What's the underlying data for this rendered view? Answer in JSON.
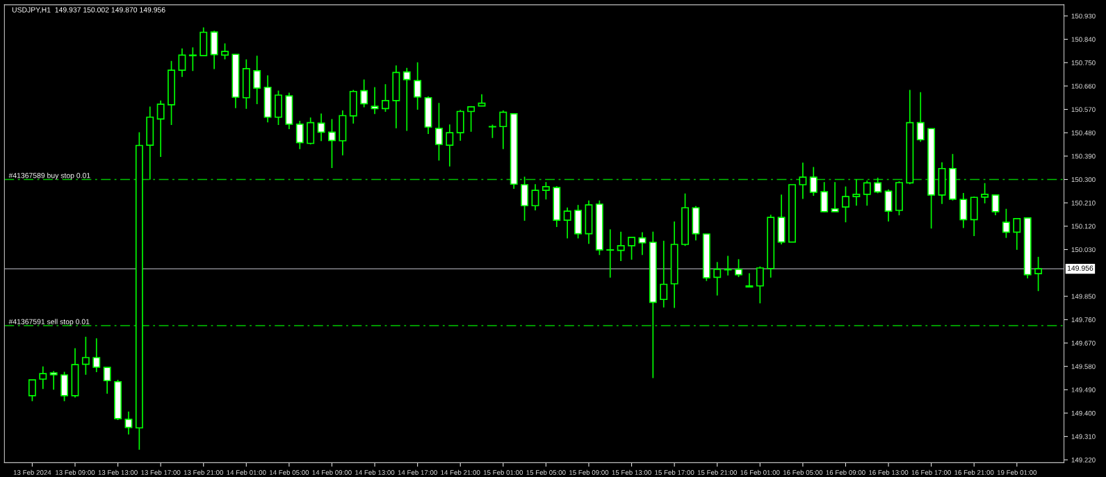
{
  "chart_data": {
    "type": "candlestick",
    "title": "USDJPY,H1  149.937 150.002 149.870 149.956",
    "color": "#00ff00",
    "categories": [
      "13 Feb 2024",
      null,
      null,
      null,
      "13 Feb 09:00",
      null,
      null,
      null,
      "13 Feb 13:00",
      null,
      null,
      null,
      "13 Feb 17:00",
      null,
      null,
      null,
      "13 Feb 21:00",
      null,
      null,
      null,
      "14 Feb 01:00",
      null,
      null,
      null,
      "14 Feb 05:00",
      null,
      null,
      null,
      "14 Feb 09:00",
      null,
      null,
      null,
      "14 Feb 13:00",
      null,
      null,
      null,
      "14 Feb 17:00",
      null,
      null,
      null,
      "14 Feb 21:00",
      null,
      null,
      null,
      "15 Feb 01:00",
      null,
      null,
      null,
      "15 Feb 05:00",
      null,
      null,
      null,
      "15 Feb 09:00",
      null,
      null,
      null,
      "15 Feb 13:00",
      null,
      null,
      null,
      "15 Feb 17:00",
      null,
      null,
      null,
      "15 Feb 21:00",
      null,
      null,
      null,
      "16 Feb 01:00",
      null,
      null,
      null,
      "16 Feb 05:00",
      null,
      null,
      null,
      "16 Feb 09:00",
      null,
      null,
      null,
      "16 Feb 13:00",
      null,
      null,
      null,
      "16 Feb 17:00",
      null,
      null,
      null,
      "16 Feb 21:00",
      null,
      null,
      null,
      "19 Feb 01:00",
      null,
      null
    ],
    "ohlc": [
      [
        149.467,
        149.528,
        149.446,
        149.528
      ],
      [
        149.531,
        149.58,
        149.493,
        149.552
      ],
      [
        149.555,
        149.562,
        149.49,
        149.548
      ],
      [
        149.547,
        149.559,
        149.446,
        149.467
      ],
      [
        149.467,
        149.65,
        149.46,
        149.587
      ],
      [
        149.588,
        149.694,
        149.548,
        149.614
      ],
      [
        149.614,
        149.688,
        149.558,
        149.577
      ],
      [
        149.576,
        149.576,
        149.475,
        149.525
      ],
      [
        149.521,
        149.528,
        149.373,
        149.379
      ],
      [
        149.376,
        149.406,
        149.318,
        149.345
      ],
      [
        149.343,
        150.482,
        149.259,
        150.431
      ],
      [
        150.432,
        150.581,
        150.299,
        150.54
      ],
      [
        150.533,
        150.604,
        150.387,
        150.59
      ],
      [
        150.588,
        150.757,
        150.51,
        150.721
      ],
      [
        150.721,
        150.805,
        150.695,
        150.779
      ],
      [
        150.777,
        150.809,
        150.718,
        150.779
      ],
      [
        150.777,
        150.886,
        150.775,
        150.867
      ],
      [
        150.868,
        150.873,
        150.725,
        150.781
      ],
      [
        150.779,
        150.824,
        150.763,
        150.793
      ],
      [
        150.782,
        150.782,
        150.575,
        150.617
      ],
      [
        150.615,
        150.763,
        150.572,
        150.727
      ],
      [
        150.719,
        150.777,
        150.59,
        150.652
      ],
      [
        150.655,
        150.701,
        150.52,
        150.54
      ],
      [
        150.54,
        150.642,
        150.51,
        150.625
      ],
      [
        150.622,
        150.634,
        150.494,
        150.513
      ],
      [
        150.513,
        150.526,
        150.417,
        150.442
      ],
      [
        150.439,
        150.539,
        150.435,
        150.519
      ],
      [
        150.517,
        150.554,
        150.448,
        150.482
      ],
      [
        150.482,
        150.533,
        150.344,
        150.45
      ],
      [
        150.449,
        150.566,
        150.393,
        150.546
      ],
      [
        150.545,
        150.645,
        150.515,
        150.639
      ],
      [
        150.642,
        150.685,
        150.578,
        150.592
      ],
      [
        150.582,
        150.656,
        150.552,
        150.573
      ],
      [
        150.573,
        150.667,
        150.561,
        150.604
      ],
      [
        150.604,
        150.739,
        150.497,
        150.712
      ],
      [
        150.714,
        150.73,
        150.487,
        150.685
      ],
      [
        150.681,
        150.751,
        150.569,
        150.618
      ],
      [
        150.615,
        150.62,
        150.475,
        150.502
      ],
      [
        150.497,
        150.595,
        150.373,
        150.435
      ],
      [
        150.432,
        150.512,
        150.35,
        150.48
      ],
      [
        150.48,
        150.568,
        150.449,
        150.562
      ],
      [
        150.562,
        150.583,
        150.484,
        150.58
      ],
      [
        150.583,
        150.628,
        150.583,
        150.594
      ],
      [
        150.503,
        150.511,
        150.46,
        150.504
      ],
      [
        150.504,
        150.566,
        150.417,
        150.559
      ],
      [
        150.553,
        150.553,
        150.264,
        150.282
      ],
      [
        150.28,
        150.311,
        150.141,
        150.199
      ],
      [
        150.199,
        150.282,
        150.181,
        150.258
      ],
      [
        150.258,
        150.29,
        150.223,
        150.272
      ],
      [
        150.269,
        150.274,
        150.117,
        150.143
      ],
      [
        150.143,
        150.192,
        150.073,
        150.178
      ],
      [
        150.181,
        150.202,
        150.073,
        150.091
      ],
      [
        150.091,
        150.219,
        150.052,
        150.202
      ],
      [
        150.205,
        150.219,
        150.009,
        150.029
      ],
      [
        150.028,
        150.108,
        149.922,
        150.029
      ],
      [
        150.027,
        150.099,
        149.986,
        150.045
      ],
      [
        150.045,
        150.077,
        149.991,
        150.077
      ],
      [
        150.075,
        150.097,
        150.009,
        150.056
      ],
      [
        150.058,
        150.099,
        149.535,
        149.827
      ],
      [
        149.838,
        150.064,
        149.807,
        149.896
      ],
      [
        149.898,
        150.138,
        149.805,
        150.05
      ],
      [
        150.05,
        150.246,
        150.044,
        150.191
      ],
      [
        150.191,
        150.198,
        150.065,
        150.091
      ],
      [
        150.09,
        150.09,
        149.909,
        149.921
      ],
      [
        149.923,
        149.982,
        149.853,
        149.954
      ],
      [
        149.952,
        150.006,
        149.93,
        149.954
      ],
      [
        149.954,
        149.993,
        149.924,
        149.933
      ],
      [
        149.886,
        149.939,
        149.886,
        149.89
      ],
      [
        149.89,
        149.965,
        149.823,
        149.959
      ],
      [
        149.957,
        150.164,
        149.922,
        150.154
      ],
      [
        150.154,
        150.242,
        150.05,
        150.059
      ],
      [
        150.059,
        150.28,
        150.059,
        150.28
      ],
      [
        150.28,
        150.365,
        150.225,
        150.309
      ],
      [
        150.309,
        150.348,
        150.237,
        150.251
      ],
      [
        150.253,
        150.29,
        150.174,
        150.176
      ],
      [
        150.187,
        150.29,
        150.176,
        150.176
      ],
      [
        150.194,
        150.273,
        150.135,
        150.234
      ],
      [
        150.234,
        150.301,
        150.199,
        150.243
      ],
      [
        150.243,
        150.296,
        150.199,
        150.287
      ],
      [
        150.287,
        150.307,
        150.247,
        150.252
      ],
      [
        150.255,
        150.262,
        150.138,
        150.178
      ],
      [
        150.181,
        150.293,
        150.162,
        150.288
      ],
      [
        150.287,
        150.645,
        150.282,
        150.519
      ],
      [
        150.519,
        150.636,
        150.445,
        150.453
      ],
      [
        150.496,
        150.496,
        150.111,
        150.24
      ],
      [
        150.24,
        150.366,
        150.206,
        150.342
      ],
      [
        150.342,
        150.398,
        150.219,
        150.224
      ],
      [
        150.223,
        150.248,
        150.113,
        150.145
      ],
      [
        150.145,
        150.234,
        150.082,
        150.231
      ],
      [
        150.232,
        150.286,
        150.208,
        150.243
      ],
      [
        150.24,
        150.24,
        150.162,
        150.176
      ],
      [
        150.135,
        150.187,
        150.075,
        150.097
      ],
      [
        150.097,
        150.149,
        150.029,
        150.149
      ],
      [
        150.152,
        150.152,
        149.919,
        149.933
      ],
      [
        149.937,
        150.002,
        149.87,
        149.956
      ]
    ],
    "ylim": [
      149.209,
      150.973
    ],
    "yticks": [
      {
        "value": 149.22,
        "label": "149.220"
      },
      {
        "value": 149.31,
        "label": "149.310"
      },
      {
        "value": 149.4,
        "label": "149.400"
      },
      {
        "value": 149.49,
        "label": "149.490"
      },
      {
        "value": 149.58,
        "label": "149.580"
      },
      {
        "value": 149.67,
        "label": "149.670"
      },
      {
        "value": 149.76,
        "label": "149.760"
      },
      {
        "value": 149.85,
        "label": "149.850"
      },
      {
        "value": 150.03,
        "label": "150.030"
      },
      {
        "value": 150.12,
        "label": "150.120"
      },
      {
        "value": 150.21,
        "label": "150.210"
      },
      {
        "value": 150.3,
        "label": "150.300"
      },
      {
        "value": 150.39,
        "label": "150.390"
      },
      {
        "value": 150.48,
        "label": "150.480"
      },
      {
        "value": 150.57,
        "label": "150.570"
      },
      {
        "value": 150.66,
        "label": "150.660"
      },
      {
        "value": 150.75,
        "label": "150.750"
      },
      {
        "value": 150.84,
        "label": "150.840"
      },
      {
        "value": 150.93,
        "label": "150.930"
      }
    ],
    "ref_lines": [
      {
        "axis": "y",
        "value": 150.3,
        "label": "#41367589 buy stop 0.01",
        "color": "#00c800",
        "line_style": "dashed"
      },
      {
        "axis": "y",
        "value": 149.737,
        "label": "#41367591 sell stop 0.01",
        "color": "#00c800",
        "line_style": "dashed"
      },
      {
        "axis": "y",
        "value": 149.956,
        "label": "149.956",
        "color": "#a0a0a8",
        "line_style": "solid"
      }
    ],
    "grid": false,
    "legend": false
  }
}
